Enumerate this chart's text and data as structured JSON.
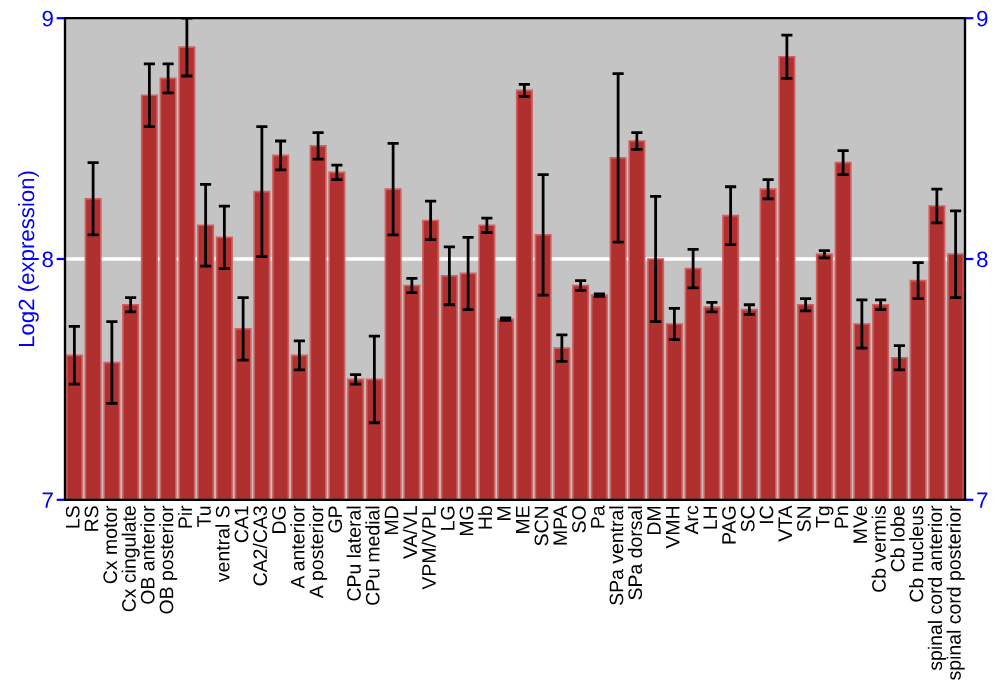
{
  "chart_data": {
    "type": "bar",
    "ylabel": "Log2 (expression)",
    "categories": [
      "LS",
      "RS",
      "Cx motor",
      "Cx cingulate",
      "OB anterior",
      "OB posterior",
      "Pir",
      "Tu",
      "ventral S",
      "CA1",
      "CA2/CA3",
      "DG",
      "A anterior",
      "A posterior",
      "GP",
      "CPu lateral",
      "CPu medial",
      "MD",
      "VA/VL",
      "VPM/VPL",
      "LG",
      "MG",
      "Hb",
      "M",
      "ME",
      "SCN",
      "MPA",
      "SO",
      "Pa",
      "SPa ventral",
      "SPa dorsal",
      "DM",
      "VMH",
      "Arc",
      "LH",
      "PAG",
      "SC",
      "IC",
      "VTA",
      "SN",
      "Tg",
      "Pn",
      "MVe",
      "Cb vermis",
      "Cb lobe",
      "Cb nucleus",
      "spinal cord anterior",
      "spinal cord posterior"
    ],
    "values": [
      7.6,
      8.25,
      7.57,
      7.81,
      8.68,
      8.75,
      8.88,
      8.14,
      8.09,
      7.71,
      8.28,
      8.43,
      7.6,
      8.47,
      8.36,
      7.5,
      7.5,
      8.29,
      7.89,
      8.16,
      7.93,
      7.94,
      8.14,
      7.75,
      8.7,
      8.1,
      7.63,
      7.89,
      7.85,
      8.42,
      8.49,
      8.0,
      7.73,
      7.96,
      7.8,
      8.18,
      7.79,
      8.29,
      8.84,
      7.81,
      8.02,
      8.4,
      7.73,
      7.81,
      7.59,
      7.91,
      8.22,
      8.02
    ],
    "errors": [
      0.12,
      0.15,
      0.17,
      0.03,
      0.13,
      0.06,
      0.12,
      0.17,
      0.13,
      0.13,
      0.27,
      0.06,
      0.06,
      0.055,
      0.03,
      0.02,
      0.18,
      0.19,
      0.03,
      0.08,
      0.12,
      0.15,
      0.03,
      0.005,
      0.025,
      0.25,
      0.055,
      0.02,
      0.005,
      0.35,
      0.035,
      0.26,
      0.065,
      0.08,
      0.02,
      0.12,
      0.02,
      0.04,
      0.09,
      0.025,
      0.015,
      0.05,
      0.1,
      0.02,
      0.05,
      0.075,
      0.07,
      0.18
    ],
    "color": "#b03030",
    "ylim": [
      7,
      9
    ],
    "yticks": [
      7,
      8,
      9
    ],
    "y2lim": [
      7,
      9
    ],
    "y2ticks": [
      7,
      8,
      9
    ],
    "grid": "y"
  }
}
